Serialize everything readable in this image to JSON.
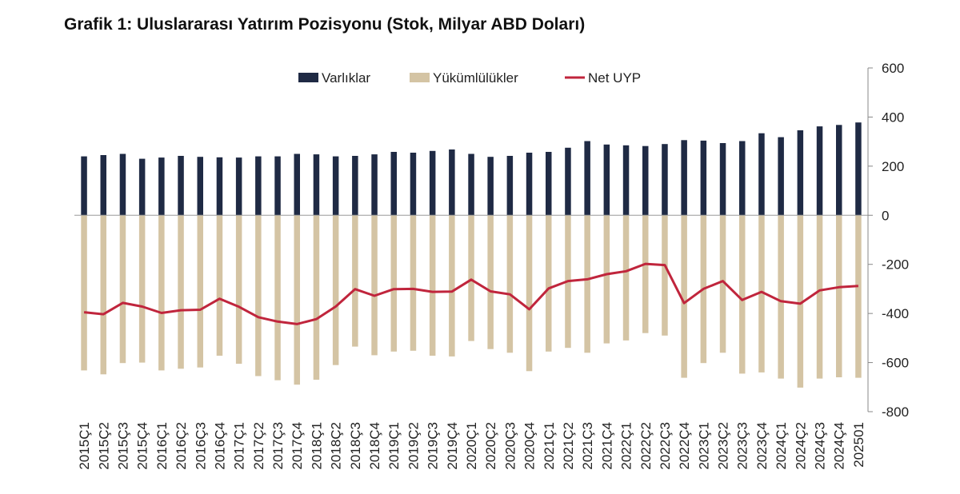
{
  "chart_data": {
    "type": "bar",
    "title": "Grafik 1: Uluslararası Yatırım Pozisyonu (Stok, Milyar ABD Doları)",
    "categories": [
      "2015Ç1",
      "2015Ç2",
      "2015Ç3",
      "2015Ç4",
      "2016Ç1",
      "2016Ç2",
      "2016Ç3",
      "2016Ç4",
      "2017Ç1",
      "2017Ç2",
      "2017Ç3",
      "2017Ç4",
      "2018Ç1",
      "2018Ç2",
      "2018Ç3",
      "2018Ç4",
      "2019Ç1",
      "2019Ç2",
      "2019Ç3",
      "2019Ç4",
      "2020Ç1",
      "2020Ç2",
      "2020Ç3",
      "2020Ç4",
      "2021Ç1",
      "2021Ç2",
      "2021Ç3",
      "2021Ç4",
      "2022Ç1",
      "2022Ç2",
      "2022Ç3",
      "2022Ç4",
      "2023Ç1",
      "2023Ç2",
      "2023Ç3",
      "2023Ç4",
      "2024Ç1",
      "2024Ç2",
      "2024Ç3",
      "2024Ç4",
      "202501"
    ],
    "series": [
      {
        "name": "Varlıklar",
        "type": "bar",
        "color": "#1f2a44",
        "values": [
          240,
          245,
          250,
          230,
          235,
          242,
          238,
          236,
          235,
          240,
          240,
          250,
          248,
          240,
          242,
          248,
          258,
          255,
          262,
          268,
          250,
          238,
          242,
          255,
          258,
          275,
          302,
          288,
          285,
          282,
          290,
          306,
          304,
          294,
          302,
          334,
          318,
          346,
          362,
          368,
          378
        ]
      },
      {
        "name": "Yükümlülükler",
        "type": "bar",
        "color": "#d4c4a4",
        "values": [
          -632,
          -648,
          -602,
          -600,
          -632,
          -625,
          -620,
          -572,
          -605,
          -655,
          -672,
          -690,
          -670,
          -610,
          -535,
          -570,
          -555,
          -552,
          -572,
          -575,
          -512,
          -545,
          -560,
          -635,
          -555,
          -540,
          -560,
          -522,
          -510,
          -480,
          -490,
          -662,
          -602,
          -560,
          -645,
          -640,
          -665,
          -702,
          -665,
          -660,
          -662
        ]
      },
      {
        "name": "Net UYP",
        "type": "line",
        "color": "#c0253c",
        "values": [
          -395,
          -403,
          -357,
          -372,
          -398,
          -387,
          -385,
          -340,
          -373,
          -415,
          -433,
          -443,
          -423,
          -372,
          -301,
          -328,
          -301,
          -300,
          -312,
          -311,
          -262,
          -310,
          -322,
          -383,
          -298,
          -268,
          -261,
          -240,
          -228,
          -198,
          -203,
          -358,
          -300,
          -268,
          -345,
          -312,
          -350,
          -360,
          -306,
          -293,
          -288
        ]
      }
    ],
    "ylim": [
      -800,
      600
    ],
    "yticks": [
      600,
      400,
      200,
      0,
      -200,
      -400,
      -600,
      -800
    ],
    "y_axis_position": "right",
    "grid": false,
    "legend_position": "top"
  }
}
